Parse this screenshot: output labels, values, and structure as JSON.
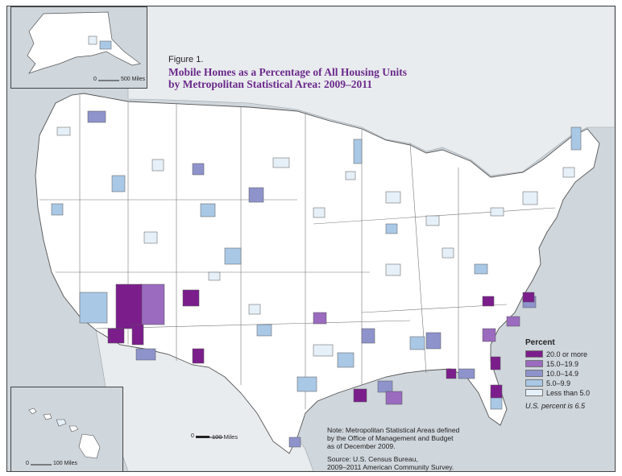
{
  "title": {
    "figure_label": "Figure 1.",
    "line1": "Mobile Homes as a Percentage of All Housing Units",
    "line2": "by Metropolitan Statistical Area: 2009–2011"
  },
  "legend": {
    "title": "Percent",
    "items": [
      {
        "label": "20.0 or more",
        "color": "#7b1e8c"
      },
      {
        "label": "15.0–19.9",
        "color": "#9a6bbf"
      },
      {
        "label": "10.0–14.9",
        "color": "#8e93cc"
      },
      {
        "label": "5.0–9.9",
        "color": "#a9c8e6"
      },
      {
        "label": "Less than 5.0",
        "color": "#e6f0f8"
      }
    ],
    "us_note": "U.S. percent is 6.5"
  },
  "notes": {
    "line1": "Note: Metropolitan Statistical Areas defined",
    "line2": "by the Office of Management and Budget",
    "line3": "as of December 2009.",
    "line4": "Source: U.S. Census Bureau,",
    "line5": "2009–2011 American Community Survey."
  },
  "scales": {
    "main": "100 Miles",
    "alaska": "500 Miles",
    "hawaii": "100 Miles",
    "zero": "0"
  },
  "colors": {
    "land": "#ffffff",
    "water": "#cfd6dc",
    "border": "#555555",
    "title": "#6b2a8c"
  }
}
